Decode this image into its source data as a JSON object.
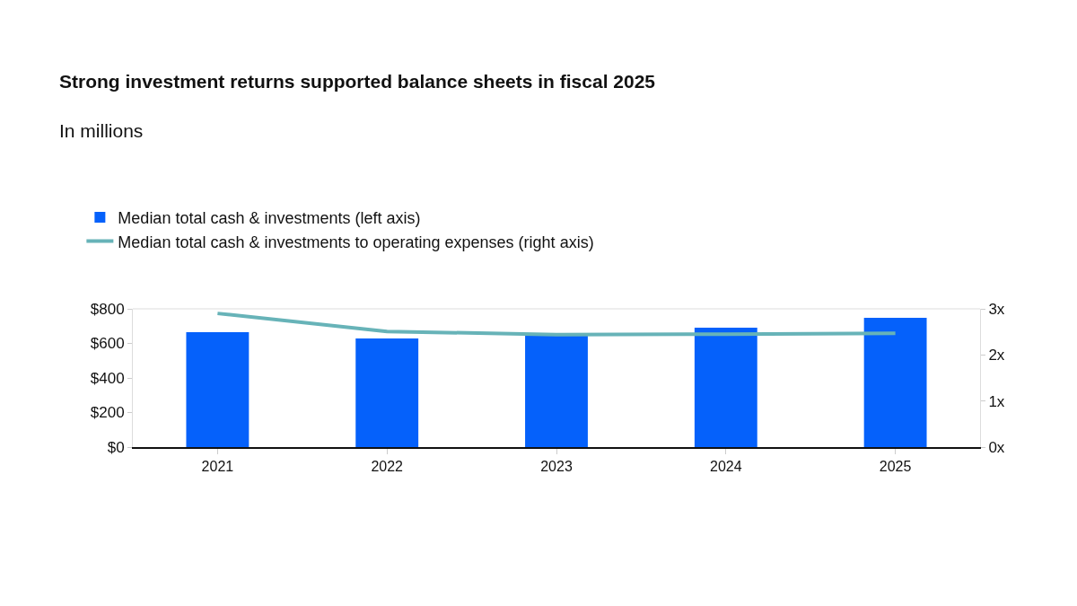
{
  "chart_data": {
    "type": "bar",
    "title": "Strong investment returns supported balance sheets in fiscal 2025",
    "subtitle": "In millions",
    "categories": [
      "2021",
      "2022",
      "2023",
      "2024",
      "2025"
    ],
    "series": [
      {
        "name": "Median total cash & investments (left axis)",
        "color": "#0561fb",
        "values": [
          665,
          629,
          645,
          691,
          748
        ]
      },
      {
        "name": "Median total cash & investments to operating expenses (right axis)",
        "type": "line",
        "axis": "y2",
        "color": "#67b3b8",
        "values": [
          2.9,
          2.51,
          2.44,
          2.45,
          2.47
        ]
      }
    ],
    "ylim": [
      0,
      800
    ],
    "yticks": [
      {
        "value": 0,
        "label": "$0"
      },
      {
        "value": 200,
        "label": "$200"
      },
      {
        "value": 400,
        "label": "$400"
      },
      {
        "value": 600,
        "label": "$600"
      },
      {
        "value": 800,
        "label": "$800"
      }
    ],
    "y2lim": [
      0,
      3
    ],
    "y2ticks": [
      {
        "value": 0,
        "label": "0x"
      },
      {
        "value": 1,
        "label": "1x"
      },
      {
        "value": 2,
        "label": "2x"
      },
      {
        "value": 3,
        "label": "3x"
      }
    ],
    "legend": "top left",
    "marker": "none",
    "line_style": "solid"
  }
}
